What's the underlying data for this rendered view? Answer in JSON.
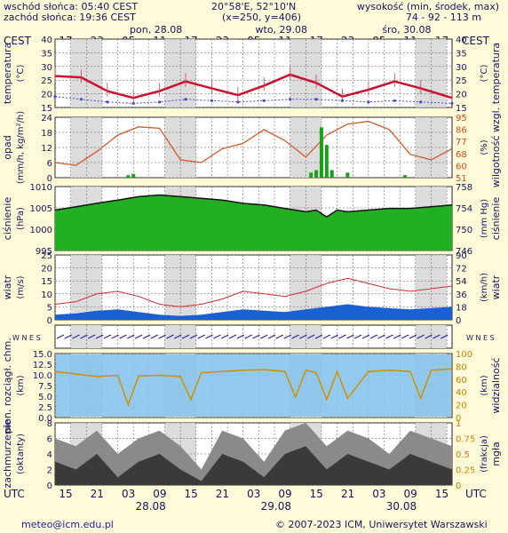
{
  "header": {
    "sunrise": "wschód słońca: 05:40 CEST",
    "sunset": "zachód słońca: 19:36 CEST",
    "coords": "20°58'E, 52°10'N",
    "grid": "(x=250, y=406)",
    "altitude_label": "wysokość (min, środek, max)",
    "altitude_values": "74 - 92 - 113 m",
    "tz_left": "CEST",
    "tz_right": "CEST",
    "top_hours": [
      "17",
      "23",
      "05",
      "11",
      "17",
      "23",
      "05",
      "11",
      "17",
      "23",
      "05",
      "11",
      "17"
    ],
    "days_top": [
      "pon, 28.08",
      "wto, 29.08",
      "śro, 30.08"
    ]
  },
  "footer": {
    "tz_left": "UTC",
    "tz_right": "UTC",
    "bottom_hours": [
      "15",
      "21",
      "03",
      "09",
      "15",
      "21",
      "03",
      "09",
      "15",
      "21",
      "03",
      "09",
      "15"
    ],
    "dates": [
      "28.08",
      "29.08",
      "30.08"
    ],
    "email": "meteo@icm.edu.pl",
    "copyright": "© 2007-2023 ICM, Uniwersytet Warszawski"
  },
  "panels": {
    "temperature": {
      "left_label": "temperatura",
      "left_unit": "(°C)",
      "right_label": "temperatura",
      "right_unit": "(°C)"
    },
    "precip": {
      "left_label": "opad",
      "left_unit": "(mm/h, kg/m²/h)",
      "right_label": "wilgotność wzgl.",
      "right_unit": "(%)"
    },
    "pressure": {
      "left_label": "ciśnienie",
      "left_unit": "(hPa)",
      "right_label": "ciśnienie",
      "right_unit": "(mm Hg)"
    },
    "wind": {
      "left_label": "wiatr",
      "left_unit": "(m/s)",
      "right_label": "wiatr",
      "right_unit": "(km/h)"
    },
    "winddir": {
      "left": "W N E S",
      "right": "W N E S"
    },
    "clouds": {
      "left_label": "pion. rozciągł. chm.",
      "left_unit": "(km)",
      "right_label": "widzialność",
      "right_unit": "(km)"
    },
    "cover": {
      "left_label": "zachmurzenie",
      "left_unit": "(oktanty)",
      "right_label": "mgła",
      "right_unit": "(frakcja)"
    }
  },
  "chart_data": [
    {
      "type": "line",
      "id": "temperature",
      "ylim": [
        15,
        40
      ],
      "ylabel": "temperatura (°C)",
      "left_ticks": [
        "40",
        "35",
        "30",
        "25",
        "20",
        "15"
      ],
      "right_ticks": [
        "40",
        "35",
        "30",
        "25",
        "20",
        "15"
      ],
      "x_hours_utc": [
        0,
        6,
        12,
        18,
        24,
        30,
        36,
        42,
        48,
        54,
        60,
        66,
        72,
        76
      ],
      "series": [
        {
          "role": "temperature",
          "values": [
            26.5,
            26,
            21,
            18.5,
            21,
            24.5,
            22,
            19.5,
            23,
            27,
            24,
            19,
            21.5,
            24.5,
            22,
            18.5
          ]
        },
        {
          "role": "dew point",
          "values": [
            19,
            18,
            17,
            16.5,
            17,
            18,
            17.5,
            17,
            17.5,
            18,
            18,
            17.5,
            17,
            17.5,
            17,
            16.5
          ]
        }
      ],
      "point_x": [
        0,
        5,
        10,
        15,
        20,
        25,
        30,
        35,
        40,
        45,
        50,
        55,
        60,
        65,
        70,
        76
      ]
    },
    {
      "type": "line",
      "id": "precip_humidity",
      "ylim": [
        0,
        24
      ],
      "y2lim": [
        51,
        95
      ],
      "left_ticks": [
        "24",
        "18",
        "12",
        "6",
        "0"
      ],
      "right_ticks": [
        "95",
        "86",
        "77",
        "68",
        "60",
        "51"
      ],
      "humidity": {
        "x": [
          0,
          4,
          8,
          12,
          16,
          20,
          24,
          28,
          32,
          36,
          40,
          44,
          48,
          52,
          56,
          60,
          64,
          68,
          72,
          76
        ],
        "values": [
          62,
          60,
          70,
          82,
          88,
          87,
          64,
          62,
          72,
          76,
          86,
          78,
          66,
          82,
          90,
          92,
          86,
          68,
          64,
          72
        ]
      },
      "precip": {
        "x": [
          14,
          15,
          49,
          50,
          51,
          52,
          53,
          56,
          67
        ],
        "values": [
          1,
          1.5,
          2,
          3,
          20,
          13,
          3,
          2,
          1
        ]
      }
    },
    {
      "type": "area",
      "id": "pressure",
      "ylim": [
        993,
        1012
      ],
      "left_ticks": [
        "1010",
        "1005",
        "1000",
        "995"
      ],
      "right_ticks": [
        "758",
        "754",
        "750",
        "746"
      ],
      "x": [
        0,
        4,
        8,
        12,
        16,
        20,
        24,
        28,
        32,
        36,
        40,
        44,
        48,
        50,
        52,
        54,
        56,
        60,
        64,
        68,
        72,
        76
      ],
      "values": [
        1005,
        1006,
        1007,
        1008,
        1009,
        1009.5,
        1009,
        1008.5,
        1008,
        1007,
        1006.5,
        1005.5,
        1004.5,
        1005,
        1003,
        1005,
        1004.5,
        1005,
        1005.5,
        1005.5,
        1006,
        1006.5
      ]
    },
    {
      "type": "line",
      "id": "wind",
      "ylim": [
        0,
        25
      ],
      "left_ticks": [
        "25",
        "20",
        "15",
        "10",
        "5",
        "0"
      ],
      "right_ticks": [
        "90",
        "72",
        "54",
        "36",
        "18",
        "0"
      ],
      "x": [
        0,
        4,
        8,
        12,
        16,
        20,
        24,
        28,
        32,
        36,
        40,
        44,
        48,
        52,
        56,
        60,
        64,
        68,
        72,
        76
      ],
      "gust": [
        6,
        7,
        10,
        11,
        9,
        6,
        5,
        6,
        8,
        11,
        10,
        9,
        11,
        14,
        16,
        14,
        12,
        11,
        12,
        13
      ],
      "mean": [
        2,
        2.5,
        3.5,
        4,
        3,
        2,
        1.5,
        2,
        3,
        4,
        3.5,
        3,
        4,
        5,
        6,
        5,
        4.5,
        4,
        4.5,
        5
      ]
    },
    {
      "type": "scatter",
      "id": "clouds",
      "ylim": [
        0,
        15
      ],
      "y2lim": [
        0,
        100
      ],
      "left_ticks": [
        "15.0",
        "12.5",
        "10.0",
        "7.5",
        "5.0",
        "2.5",
        "0.0"
      ],
      "right_ticks": [
        "100",
        "80",
        "60",
        "40",
        "20",
        "0"
      ],
      "visibility": {
        "x": [
          0,
          4,
          8,
          12,
          14,
          16,
          20,
          24,
          26,
          28,
          32,
          36,
          40,
          44,
          46,
          48,
          50,
          52,
          54,
          56,
          60,
          64,
          68,
          70,
          72,
          76
        ],
        "values": [
          72,
          68,
          64,
          66,
          20,
          65,
          66,
          64,
          28,
          70,
          72,
          74,
          75,
          72,
          32,
          74,
          70,
          28,
          72,
          30,
          72,
          74,
          72,
          30,
          74,
          76
        ]
      }
    },
    {
      "type": "area",
      "id": "cloud_cover",
      "ylim": [
        0,
        8
      ],
      "y2lim": [
        0,
        1
      ],
      "left_ticks": [
        "8",
        "6",
        "4",
        "2",
        "0"
      ],
      "right_ticks": [
        "1",
        "0.75",
        "0.5",
        "0.25",
        "0"
      ],
      "x": [
        0,
        4,
        8,
        12,
        16,
        20,
        24,
        28,
        32,
        36,
        40,
        44,
        48,
        52,
        56,
        60,
        64,
        68,
        72,
        76
      ],
      "total": [
        6,
        5,
        7,
        4,
        6,
        7,
        5,
        2,
        7,
        6,
        3,
        7,
        8,
        5,
        7,
        6,
        4,
        7,
        6,
        5
      ],
      "low": [
        3,
        2,
        4,
        1,
        3,
        4,
        2,
        0.5,
        4,
        3,
        1,
        4,
        5,
        2,
        4,
        3,
        2,
        4,
        3,
        2
      ]
    }
  ]
}
